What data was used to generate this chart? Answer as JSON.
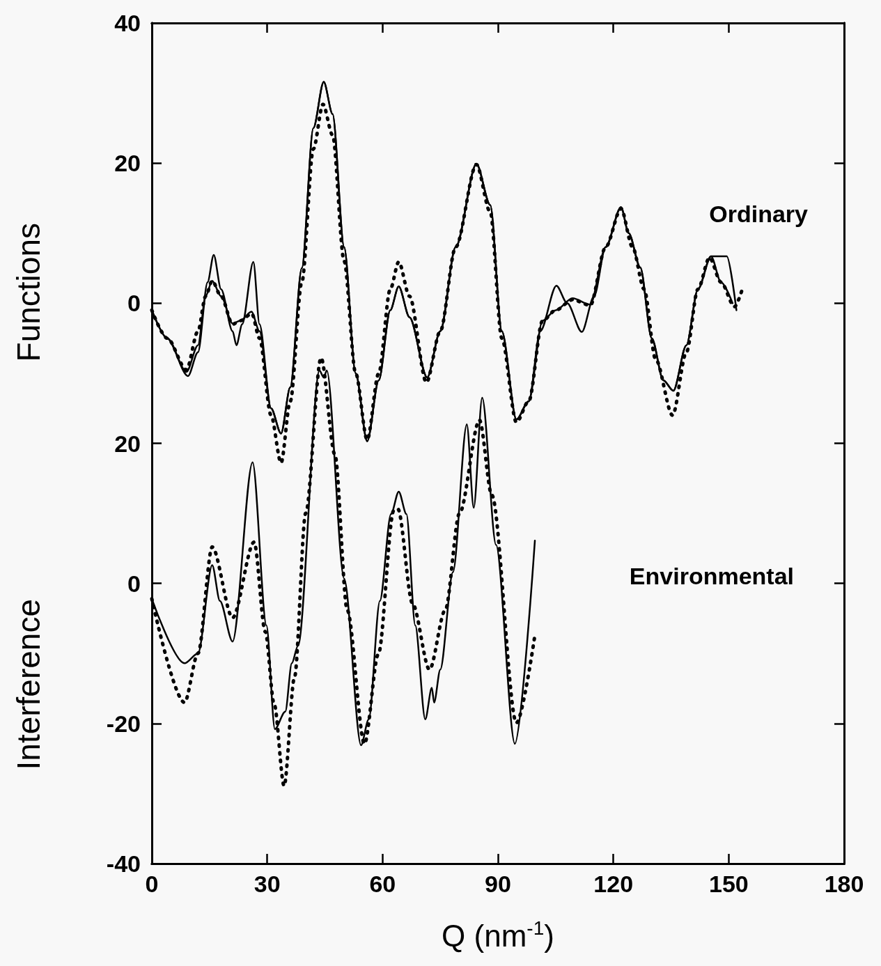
{
  "chart_data": [
    {
      "type": "line",
      "ylabel": "Functions",
      "xlim": [
        0,
        180
      ],
      "ylim": [
        -80,
        40
      ],
      "yticks": [
        40,
        20,
        0
      ],
      "tick_labels": "y",
      "marker": "none",
      "annotations": [
        "Ordinary"
      ],
      "series": [
        {
          "color": "#000000",
          "line_style": "solid",
          "x": [
            0,
            4,
            9.4,
            12,
            14.5,
            16.1,
            18,
            21,
            22,
            23.5,
            26.4,
            28,
            31,
            33.6,
            36,
            39,
            42,
            44.7,
            47,
            50,
            53,
            56,
            59,
            62,
            64.2,
            67,
            71.6,
            75,
            79,
            84.4,
            88,
            91,
            94.8,
            98,
            101,
            105.2,
            108,
            111.8,
            115,
            118,
            122,
            124,
            127,
            130,
            133,
            135.6,
            139,
            142,
            145.4,
            149.5,
            152
          ],
          "values": [
            -1,
            -5,
            -10.4,
            -7,
            3,
            6.9,
            2,
            -4,
            -6,
            -3,
            5.9,
            -3,
            -15,
            -18.6,
            -12,
            5,
            25,
            31.6,
            27,
            8,
            -10,
            -19.7,
            -11,
            -1,
            2.4,
            -2,
            -10.6,
            -4,
            8,
            19.9,
            14,
            -4,
            -16.6,
            -14,
            -4,
            2.5,
            0,
            -4.1,
            1,
            8,
            13.7,
            10,
            5.1,
            -5,
            -11,
            -12.5,
            -6,
            2,
            6.7,
            6.7,
            -1
          ]
        },
        {
          "color": "#000000",
          "line_style": "solid",
          "x": [
            0,
            4,
            9,
            12,
            14,
            15.7,
            18,
            21,
            23,
            25.9,
            28,
            31,
            33.6,
            36,
            39,
            42,
            44.7,
            47,
            50,
            53,
            56,
            59,
            62,
            64.2,
            67,
            71.6,
            75,
            79,
            84.4,
            88,
            91,
            94.8,
            98,
            101.6,
            105,
            109.4,
            114,
            118,
            122,
            124,
            127,
            130,
            133,
            135.6,
            139,
            142,
            145.4,
            148,
            151
          ],
          "values": [
            -1,
            -5,
            -9.8,
            -6,
            1,
            3.2,
            1,
            -2.9,
            -2.5,
            -1.2,
            -4,
            -15,
            -18.6,
            -12,
            5,
            25,
            31.6,
            27,
            8,
            -10,
            -19.7,
            -11,
            -1,
            2.4,
            -2,
            -10.6,
            -4,
            8,
            19.9,
            14,
            -4,
            -16.6,
            -14,
            -2.5,
            -1,
            0.7,
            -0.2,
            8,
            13.7,
            10,
            5.1,
            -5,
            -11,
            -12.5,
            -6,
            2,
            6.7,
            3,
            0
          ]
        },
        {
          "color": "#000000",
          "line_style": "dotted",
          "x": [
            0,
            4,
            9,
            12,
            14,
            15.7,
            18,
            21,
            23,
            26,
            28,
            31,
            33.6,
            36,
            39,
            42,
            44.5,
            47,
            50,
            53,
            56,
            59,
            62,
            64.2,
            67,
            71.4,
            75,
            79,
            84.4,
            88,
            91,
            94.8,
            98,
            101.6,
            105,
            109.4,
            114,
            118,
            122,
            125,
            128,
            131,
            135.4,
            139,
            142,
            145,
            148,
            151.5,
            153.7
          ],
          "values": [
            -1,
            -5,
            -9.5,
            -4,
            1,
            3.2,
            1,
            -3,
            -2.5,
            -1.5,
            -5,
            -16,
            -22.8,
            -14,
            3,
            22,
            28.4,
            24,
            6,
            -10,
            -19.5,
            -10,
            2,
            5.9,
            1,
            -11.3,
            -4,
            8,
            19.8,
            13,
            -5,
            -17,
            -14,
            -2.5,
            -1,
            0.5,
            -0.3,
            8,
            13.5,
            8,
            2,
            -8,
            -16,
            -7,
            2,
            6.5,
            3,
            -0.5,
            2.3
          ]
        }
      ]
    },
    {
      "type": "line",
      "ylabel": "Interference",
      "xlabel": "Q (nm$^{-1}$)",
      "xlim": [
        0,
        180
      ],
      "xticks": [
        0,
        30,
        60,
        90,
        120,
        150,
        180
      ],
      "ylim": [
        -40,
        80
      ],
      "yticks": [
        20,
        0,
        -20,
        -40
      ],
      "marker": "none",
      "annotations": [
        "Environmental"
      ],
      "series": [
        {
          "color": "#000000",
          "line_style": "solid",
          "x": [
            0,
            8.5,
            12,
            15.7,
            17.7,
            21,
            26.2,
            29.8,
            32,
            34.7,
            36.4,
            38,
            43.6,
            44.7,
            45.5,
            50,
            54.4,
            56.4,
            59.3,
            62.2,
            64.2,
            66.2,
            68.5,
            71.1,
            72.8,
            73.4,
            75,
            78.3,
            81.9,
            83.7,
            85.9,
            89.5,
            94.4,
            99.6
          ],
          "values": [
            -2.2,
            -11.4,
            -10,
            2.6,
            -2.5,
            -8.3,
            17.3,
            -6,
            -20.8,
            -18.3,
            -11.4,
            -8.9,
            30.4,
            29.4,
            30.4,
            0.7,
            -23.1,
            -19.4,
            -2.5,
            9.9,
            13.1,
            9.9,
            -6,
            -19.4,
            -14.9,
            -17,
            -12.3,
            1.6,
            22.7,
            10.8,
            26.5,
            5.5,
            -22.9,
            6.1
          ]
        },
        {
          "color": "#000000",
          "line_style": "dotted",
          "x": [
            0,
            8.5,
            12,
            15.7,
            21,
            26.6,
            29.5,
            31.8,
            34.4,
            37.1,
            40,
            44,
            47.6,
            50.8,
            55.3,
            58.9,
            62.9,
            64,
            67.8,
            72.2,
            76.3,
            80,
            85.2,
            88.4,
            94.8,
            99.6
          ],
          "values": [
            -2.2,
            -17,
            -10,
            5.2,
            -4.9,
            5.9,
            -6.9,
            -17.2,
            -28.9,
            -13.4,
            10,
            32.2,
            18.4,
            -3.8,
            -22.9,
            -10.1,
            10.4,
            10.6,
            -2.9,
            -12.3,
            -3.8,
            10,
            23.3,
            12.6,
            -19.9,
            -7.4
          ]
        }
      ]
    }
  ]
}
